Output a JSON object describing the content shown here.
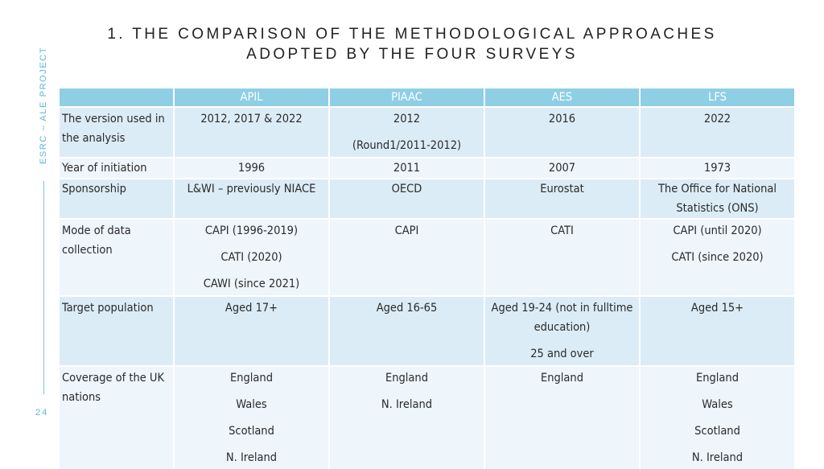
{
  "title": {
    "line1": "1. THE COMPARISON OF THE METHODOLOGICAL APPROACHES",
    "line2": "ADOPTED BY THE FOUR SURVEYS"
  },
  "side_label": "ESRC – ALE PROJECT",
  "page_number": "24",
  "table": {
    "headers": [
      "",
      "APIL",
      "PIAAC",
      "AES",
      "LFS"
    ],
    "rows": {
      "version": {
        "label": "The version used in the analysis",
        "apil": "2012, 2017 & 2022",
        "piaac": "2012",
        "piaac_extra": "(Round1/2011-2012)",
        "aes": "2016",
        "lfs": "2022"
      },
      "year": {
        "label": "Year of initiation",
        "apil": "1996",
        "piaac": "2011",
        "aes": "2007",
        "lfs": "1973"
      },
      "sponsorship": {
        "label": "Sponsorship",
        "apil": "L&WI – previously NIACE",
        "piaac": "OECD",
        "aes": "Eurostat",
        "lfs": "The Office for National Statistics (ONS)"
      },
      "mode": {
        "label": "Mode of data collection",
        "apil": [
          "CAPI (1996-2019)",
          "CATI (2020)",
          "CAWI (since 2021)"
        ],
        "piaac": "CAPI",
        "aes": "CATI",
        "lfs": [
          "CAPI (until 2020)",
          "CATI (since 2020)"
        ]
      },
      "target": {
        "label": "Target population",
        "apil": "Aged 17+",
        "piaac": "Aged 16-65",
        "aes": [
          "Aged 19-24 (not in fulltime education)",
          "25 and over"
        ],
        "lfs": "Aged 15+"
      },
      "coverage": {
        "label": "Coverage of the UK nations",
        "apil": [
          "England",
          "Wales",
          "Scotland",
          "N. Ireland"
        ],
        "piaac": [
          "England",
          "N. Ireland"
        ],
        "aes": [
          "England"
        ],
        "lfs": [
          "England",
          "Wales",
          "Scotland",
          "N. Ireland"
        ]
      }
    }
  }
}
